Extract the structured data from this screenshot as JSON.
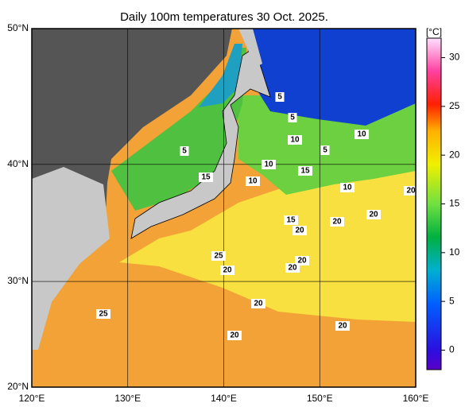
{
  "map": {
    "title": "Daily 100m temperatures 30 Oct. 2025.",
    "xlim": [
      120,
      160
    ],
    "ylim": [
      20,
      50
    ],
    "xticks": [
      {
        "value": 120,
        "label": "120°E"
      },
      {
        "value": 130,
        "label": "130°E"
      },
      {
        "value": 140,
        "label": "140°E"
      },
      {
        "value": 150,
        "label": "150°E"
      },
      {
        "value": 160,
        "label": "160°E"
      }
    ],
    "yticks": [
      {
        "value": 20,
        "label": "20°N"
      },
      {
        "value": 30,
        "label": "30°N"
      },
      {
        "value": 40,
        "label": "40°N"
      },
      {
        "value": 50,
        "label": "50°N"
      }
    ],
    "colorbar": {
      "unit": "[°C]",
      "lim": [
        -2,
        32
      ],
      "ticks": [
        0,
        5,
        10,
        15,
        20,
        25,
        30
      ]
    },
    "contour_labels": [
      "5",
      "5",
      "10",
      "10",
      "5",
      "5",
      "15",
      "10",
      "15",
      "10",
      "10",
      "20",
      "20",
      "15",
      "20",
      "20",
      "25",
      "20",
      "20",
      "20",
      "25",
      "20",
      "20",
      "20"
    ]
  }
}
